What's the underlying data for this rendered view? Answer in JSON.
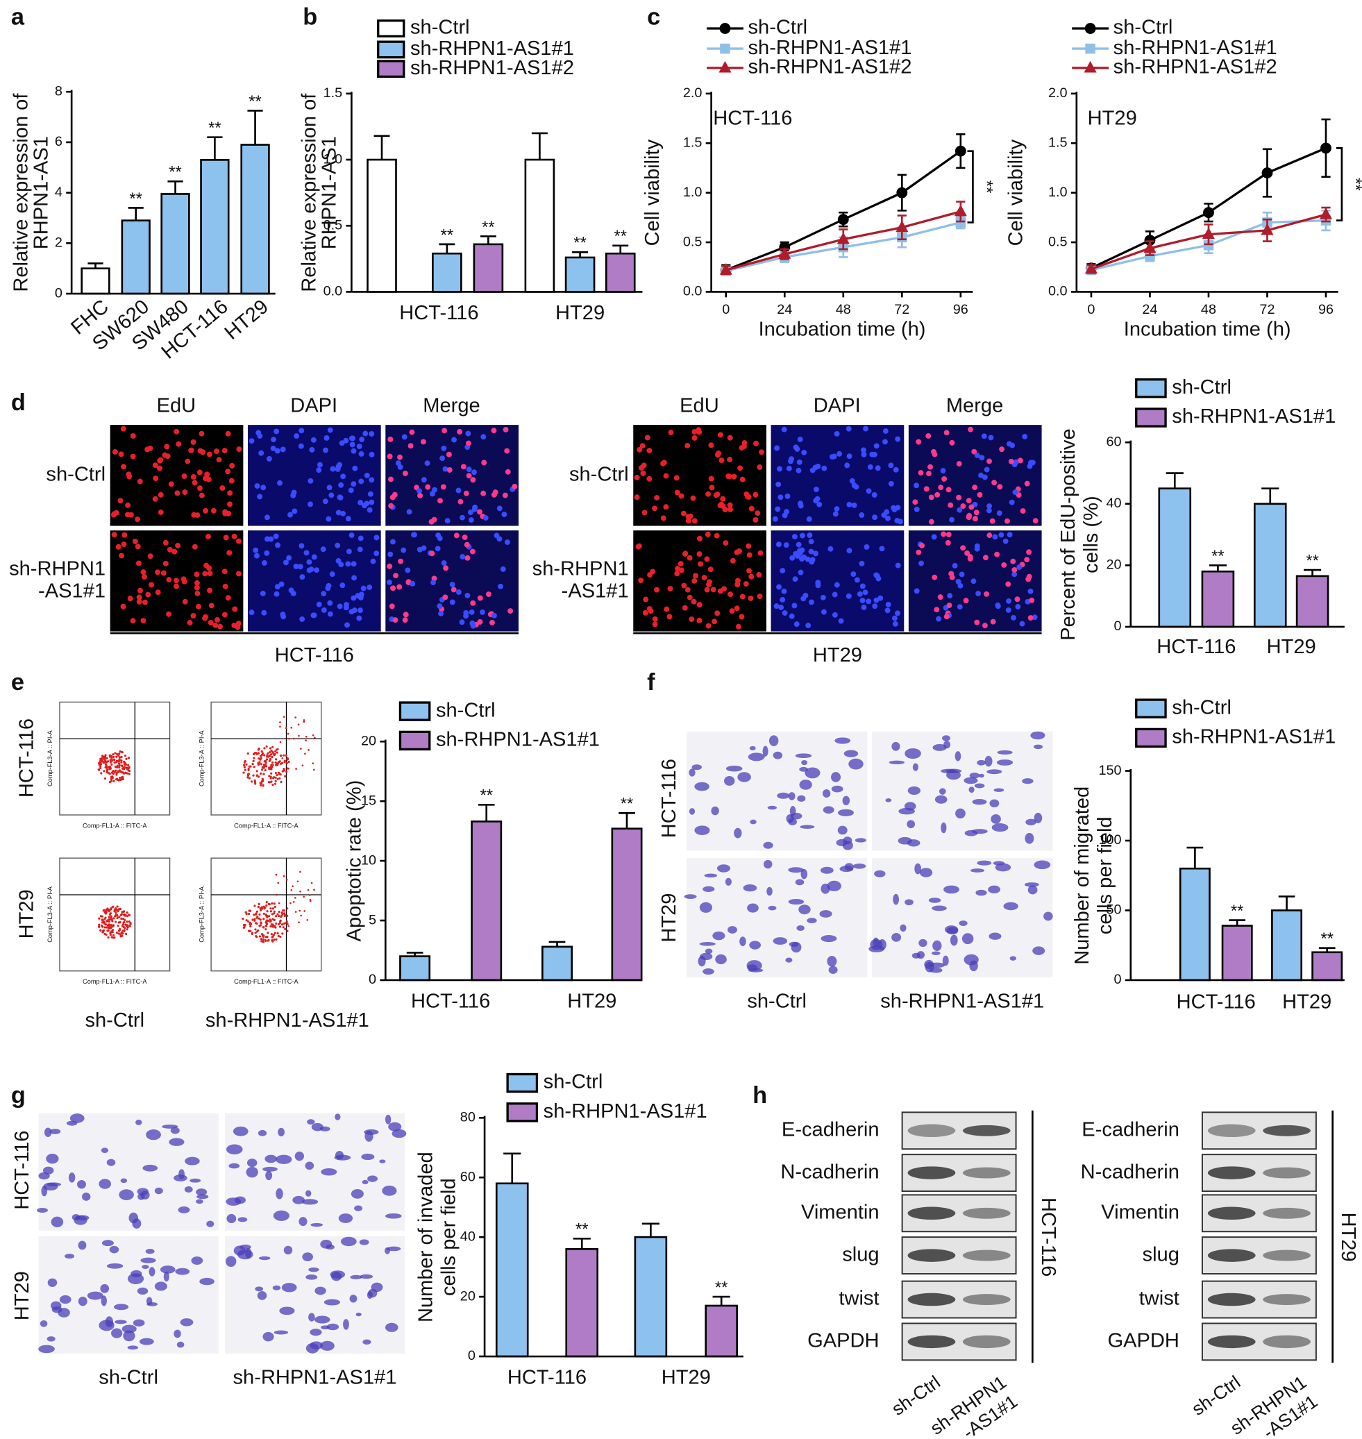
{
  "chart_data": [
    {
      "type": "bar",
      "ylabel": [
        "Relative expression of",
        "RHPN1-AS1"
      ],
      "categories": [
        "FHC",
        "SW620",
        "SW480",
        "HCT-116",
        "HT29"
      ],
      "series": [
        {
          "values": [
            1.0,
            2.9,
            3.95,
            5.3,
            5.9
          ],
          "errors": [
            0.2,
            0.5,
            0.5,
            0.9,
            1.35
          ],
          "colors": [
            "#ffffff",
            "#8ec2ee",
            "#8ec2ee",
            "#8ec2ee",
            "#8ec2ee"
          ],
          "annotations": [
            null,
            "**",
            "**",
            "**",
            "**"
          ]
        }
      ],
      "ylim": [
        0,
        8
      ],
      "yticks": [
        0,
        2,
        4,
        6,
        8
      ]
    },
    {
      "type": "bar",
      "ylabel": [
        "Relative expression of",
        "RHPN1-AS1"
      ],
      "categories": [
        "HCT-116",
        "HT29"
      ],
      "series": [
        {
          "name": "sh-Ctrl",
          "color": "#ffffff",
          "values": [
            1.0,
            1.0
          ],
          "errors": [
            0.18,
            0.2
          ],
          "annotations": [
            null,
            null
          ]
        },
        {
          "name": "sh-RHPN1-AS1#1",
          "color": "#8ec2ee",
          "values": [
            0.29,
            0.26
          ],
          "errors": [
            0.07,
            0.04
          ],
          "annotations": [
            "**",
            "**"
          ]
        },
        {
          "name": "sh-RHPN1-AS1#2",
          "color": "#b07cc6",
          "values": [
            0.36,
            0.29
          ],
          "errors": [
            0.06,
            0.06
          ],
          "annotations": [
            "**",
            "**"
          ]
        }
      ],
      "ylim": [
        0,
        1.5
      ],
      "yticks": [
        {
          "value": 0,
          "label": "0.0"
        },
        0.5,
        {
          "value": 1,
          "label": "1.0"
        },
        1.5
      ]
    },
    {
      "type": "line",
      "annotation": "HCT-116",
      "bracket_label": "**",
      "xlabel": "Incubation time (h)",
      "ylabel": [
        "Cell viability"
      ],
      "x": [
        0,
        24,
        48,
        72,
        96
      ],
      "xlim": [
        -6,
        101
      ],
      "xticks": [
        0,
        24,
        48,
        72,
        96
      ],
      "series": [
        {
          "name": "sh-Ctrl",
          "color": "#000000",
          "marker": "circle",
          "values": [
            0.22,
            0.45,
            0.73,
            1.0,
            1.42
          ],
          "errors": [
            0.05,
            0.05,
            0.07,
            0.18,
            0.17
          ]
        },
        {
          "name": "sh-RHPN1-AS1#1",
          "color": "#8fbfe8",
          "marker": "square",
          "values": [
            0.21,
            0.35,
            0.45,
            0.55,
            0.7
          ],
          "errors": [
            0.04,
            0.05,
            0.1,
            0.1,
            0.06
          ]
        },
        {
          "name": "sh-RHPN1-AS1#2",
          "color": "#b01c2a",
          "marker": "triangle",
          "values": [
            0.22,
            0.38,
            0.53,
            0.65,
            0.81
          ],
          "errors": [
            0.04,
            0.05,
            0.1,
            0.12,
            0.1
          ]
        }
      ],
      "ylim": [
        0,
        2
      ],
      "yticks": [
        {
          "value": 0,
          "label": "0.0"
        },
        0.5,
        {
          "value": 1,
          "label": "1.0"
        },
        1.5,
        {
          "value": 2,
          "label": "2.0"
        }
      ]
    },
    {
      "type": "line",
      "annotation": "HT29",
      "bracket_label": "**",
      "xlabel": "Incubation time (h)",
      "ylabel": [
        "Cell viability"
      ],
      "x": [
        0,
        24,
        48,
        72,
        96
      ],
      "xlim": [
        -6,
        101
      ],
      "xticks": [
        0,
        24,
        48,
        72,
        96
      ],
      "series": [
        {
          "name": "sh-Ctrl",
          "color": "#000000",
          "marker": "circle",
          "values": [
            0.24,
            0.52,
            0.8,
            1.2,
            1.45
          ],
          "errors": [
            0.04,
            0.09,
            0.09,
            0.24,
            0.29
          ]
        },
        {
          "name": "sh-RHPN1-AS1#1",
          "color": "#8fbfe8",
          "marker": "square",
          "values": [
            0.22,
            0.36,
            0.47,
            0.7,
            0.72
          ],
          "errors": [
            0.03,
            0.05,
            0.08,
            0.1,
            0.1
          ]
        },
        {
          "name": "sh-RHPN1-AS1#2",
          "color": "#b01c2a",
          "marker": "triangle",
          "values": [
            0.23,
            0.44,
            0.58,
            0.62,
            0.78
          ],
          "errors": [
            0.04,
            0.07,
            0.1,
            0.11,
            0.07
          ]
        }
      ],
      "ylim": [
        0,
        2
      ],
      "yticks": [
        {
          "value": 0,
          "label": "0.0"
        },
        0.5,
        {
          "value": 1,
          "label": "1.0"
        },
        1.5,
        {
          "value": 2,
          "label": "2.0"
        }
      ]
    },
    {
      "type": "bar",
      "ylabel": [
        "Percent of EdU-positive",
        "cells (%)"
      ],
      "categories": [
        "HCT-116",
        "HT29"
      ],
      "series": [
        {
          "name": "sh-Ctrl",
          "color": "#8ec2ee",
          "values": [
            45,
            40
          ],
          "errors": [
            5,
            5
          ],
          "annotations": [
            null,
            null
          ]
        },
        {
          "name": "sh-RHPN1-AS1#1",
          "color": "#b07cc6",
          "values": [
            18,
            16.5
          ],
          "errors": [
            2,
            2
          ],
          "annotations": [
            "**",
            "**"
          ]
        }
      ],
      "ylim": [
        0,
        60
      ],
      "yticks": [
        0,
        20,
        40,
        60
      ]
    },
    {
      "type": "bar",
      "ylabel": [
        "Apoptotic rate  (%)"
      ],
      "categories": [
        "HCT-116",
        "HT29"
      ],
      "series": [
        {
          "name": "sh-Ctrl",
          "color": "#8ec2ee",
          "values": [
            2,
            2.8
          ],
          "errors": [
            0.3,
            0.4
          ],
          "annotations": [
            null,
            null
          ]
        },
        {
          "name": "sh-RHPN1-AS1#1",
          "color": "#b07cc6",
          "values": [
            13.3,
            12.7
          ],
          "errors": [
            1.4,
            1.3
          ],
          "annotations": [
            "**",
            "**"
          ]
        }
      ],
      "ylim": [
        0,
        20
      ],
      "yticks": [
        0,
        5,
        10,
        15,
        20
      ]
    },
    {
      "type": "bar",
      "ylabel": [
        "Number of migrated",
        "cells per field"
      ],
      "categories": [
        "HCT-116",
        "HT29"
      ],
      "series": [
        {
          "name": "sh-Ctrl",
          "color": "#8ec2ee",
          "values": [
            80,
            50
          ],
          "errors": [
            15,
            10
          ],
          "annotations": [
            null,
            null
          ]
        },
        {
          "name": "sh-RHPN1-AS1#1",
          "color": "#b07cc6",
          "values": [
            39,
            20
          ],
          "errors": [
            4,
            3
          ],
          "annotations": [
            "**",
            "**"
          ]
        }
      ],
      "ylim": [
        0,
        150
      ],
      "yticks": [
        0,
        50,
        100,
        150
      ]
    },
    {
      "type": "bar",
      "ylabel": [
        "Number of invaded",
        "cells per field"
      ],
      "categories": [
        "HCT-116",
        "HT29"
      ],
      "series": [
        {
          "name": "sh-Ctrl",
          "color": "#8ec2ee",
          "values": [
            58,
            40
          ],
          "errors": [
            10,
            4.5
          ],
          "annotations": [
            null,
            null
          ]
        },
        {
          "name": "sh-RHPN1-AS1#1",
          "color": "#b07cc6",
          "values": [
            36,
            17
          ],
          "errors": [
            3.5,
            3
          ],
          "annotations": [
            "**",
            "**"
          ]
        }
      ],
      "ylim": [
        0,
        80
      ],
      "yticks": [
        0,
        20,
        40,
        60,
        80
      ]
    }
  ],
  "figure": {
    "panel_letters": [
      "a",
      "b",
      "c",
      "d",
      "e",
      "f",
      "g",
      "h"
    ],
    "d": {
      "columns": [
        "EdU",
        "DAPI",
        "Merge"
      ],
      "rows": [
        [
          "sh-Ctrl"
        ],
        [
          "sh-RHPN1",
          "-AS1#1"
        ]
      ],
      "groups": [
        "HCT-116",
        "HT29"
      ]
    },
    "e": {
      "rows": [
        "HCT-116",
        "HT29"
      ],
      "columns": [
        "sh-Ctrl",
        "sh-RHPN1-AS1#1"
      ],
      "flow_xlabel": "Comp-FL1-A :: FITC-A",
      "flow_ylabel": "Comp-FL3-A :: PI-A"
    },
    "f": {
      "rows": [
        "HCT-116",
        "HT29"
      ],
      "columns": [
        "sh-Ctrl",
        "sh-RHPN1-AS1#1"
      ]
    },
    "g": {
      "rows": [
        "HCT-116",
        "HT29"
      ],
      "columns": [
        "sh-Ctrl",
        "sh-RHPN1-AS1#1"
      ]
    },
    "h": {
      "proteins": [
        "E-cadherin",
        "N-cadherin",
        "Vimentin",
        "slug",
        "twist",
        "GAPDH"
      ],
      "lanes": [
        [
          "sh-Ctrl"
        ],
        [
          "sh-RHPN1",
          "-AS1#1"
        ]
      ],
      "cell_lines": [
        "HCT-116",
        "HT29"
      ]
    }
  }
}
